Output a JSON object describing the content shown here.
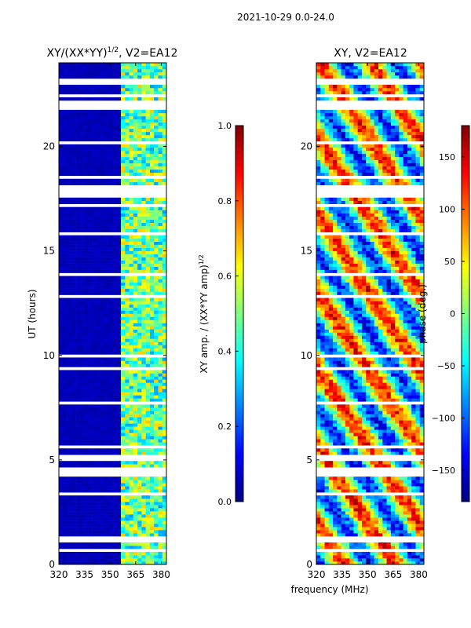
{
  "figure": {
    "suptitle": "2021-10-29 0.0-24.0",
    "xlabel": "frequency (MHz)"
  },
  "chart_data": [
    {
      "type": "heatmap",
      "title_main": "XY/(XX*YY)",
      "title_exp": "1/2",
      "title_suffix": ", V2=EA12",
      "xlabel": "",
      "ylabel": "UT (hours)",
      "xlim": [
        320,
        383
      ],
      "ylim": [
        0,
        24
      ],
      "xticks": [
        320,
        335,
        350,
        365,
        380
      ],
      "yticks": [
        0,
        5,
        10,
        15,
        20
      ],
      "colormap": "jet",
      "colorbar": {
        "range": [
          0.0,
          1.0
        ],
        "ticks": [
          0.0,
          0.2,
          0.4,
          0.6,
          0.8,
          1.0
        ],
        "tick_labels": [
          "0.0",
          "0.2",
          "0.4",
          "0.6",
          "0.8",
          "1.0"
        ],
        "label_main": "XY amp. / (XX*YY amp)",
        "label_exp": "1/2"
      },
      "data_note": "Low normalized amplitude (~0.05) from 320-357 MHz at all times; elevated values 0.3-0.7 in 357-383 MHz band; horizontal white gaps mark flagged times",
      "flagged_time_ranges_hours": [
        [
          17.6,
          18.2
        ],
        [
          4.3,
          4.7
        ],
        [
          9.9,
          10.1
        ],
        [
          23.0,
          23.2
        ],
        [
          13.8,
          14.0
        ],
        [
          7.6,
          7.8
        ]
      ]
    },
    {
      "type": "heatmap",
      "title_main": "XY, V2=EA12",
      "xlabel": "",
      "ylabel": "",
      "xlim": [
        320,
        383
      ],
      "ylim": [
        0,
        24
      ],
      "xticks": [
        320,
        335,
        350,
        365,
        380
      ],
      "yticks": [
        0,
        5,
        10,
        15,
        20
      ],
      "colormap": "jet",
      "colorbar": {
        "range": [
          -180,
          180
        ],
        "ticks": [
          -150,
          -100,
          -50,
          0,
          50,
          100,
          150
        ],
        "tick_labels": [
          "−150",
          "−100",
          "−50",
          "0",
          "50",
          "100",
          "150"
        ],
        "label_main": "phase (deg.)"
      },
      "data_note": "XY phase varies widely across -180 to 180 degrees with frequency and time; same flagged time gaps as amplitude panel"
    }
  ]
}
